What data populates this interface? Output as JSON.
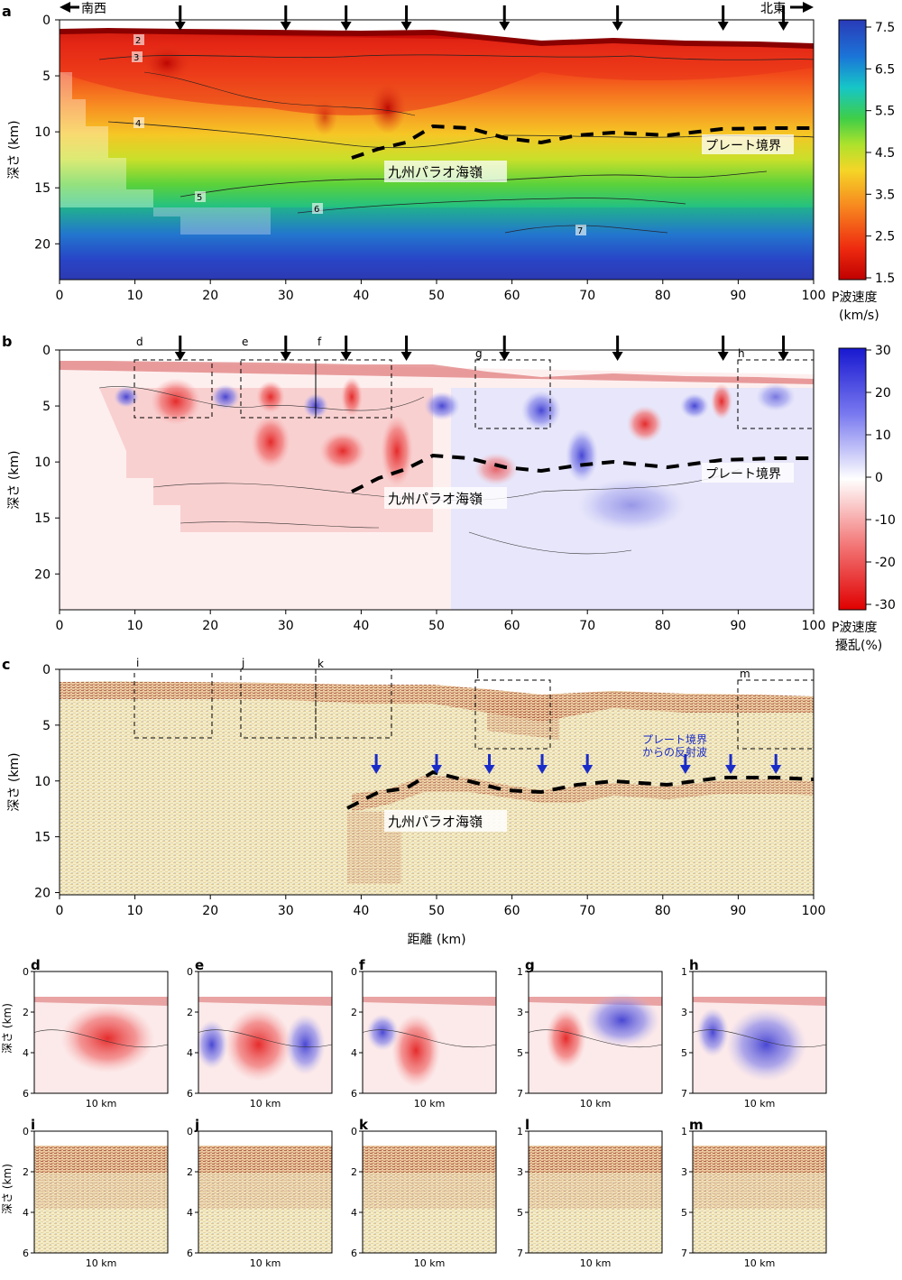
{
  "panel_a": {
    "letter": "a",
    "direction_left": "南西",
    "direction_right": "北東",
    "ylabel": "深さ (km)",
    "yticks": [
      0,
      5,
      10,
      15,
      20
    ],
    "xticks": [
      0,
      10,
      20,
      30,
      40,
      50,
      60,
      70,
      80,
      90,
      100
    ],
    "ylim": [
      0,
      23
    ],
    "xlim": [
      0,
      100
    ],
    "contour_labels": [
      "2",
      "3",
      "4",
      "5",
      "6",
      "7"
    ],
    "annotation_plate": "プレート境界",
    "annotation_ridge": "九州パラオ海嶺",
    "arrow_x": [
      16,
      30,
      38,
      46,
      59,
      74,
      88,
      96
    ],
    "colorbar": {
      "ticks": [
        "7.5",
        "6.5",
        "5.5",
        "4.5",
        "3.5",
        "2.5",
        "1.5"
      ],
      "label": "P波速度",
      "unit": "(km/s)"
    }
  },
  "panel_b": {
    "letter": "b",
    "ylabel": "深さ (km)",
    "yticks": [
      0,
      5,
      10,
      15,
      20
    ],
    "xticks": [
      0,
      10,
      20,
      30,
      40,
      50,
      60,
      70,
      80,
      90,
      100
    ],
    "box_labels": [
      "d",
      "e",
      "f",
      "g",
      "h"
    ],
    "annotation_plate": "プレート境界",
    "annotation_ridge": "九州パラオ海嶺",
    "arrow_x": [
      16,
      30,
      38,
      46,
      59,
      74,
      88,
      96
    ],
    "colorbar": {
      "ticks": [
        "30",
        "20",
        "10",
        "0",
        "-10",
        "-20",
        "-30"
      ],
      "label": "P波速度",
      "unit": "擾乱(%)"
    }
  },
  "panel_c": {
    "letter": "c",
    "ylabel": "深さ (km)",
    "xlabel": "距離 (km)",
    "yticks": [
      0,
      5,
      10,
      15,
      20
    ],
    "xticks": [
      0,
      10,
      20,
      30,
      40,
      50,
      60,
      70,
      80,
      90,
      100
    ],
    "box_labels": [
      "i",
      "j",
      "k",
      "l",
      "m"
    ],
    "annotation_reflection_1": "プレート境界",
    "annotation_reflection_2": "からの反射波",
    "annotation_ridge": "九州パラオ海嶺",
    "blue_arrow_x": [
      42,
      50,
      57,
      64,
      70,
      83,
      89,
      95
    ]
  },
  "insets_top": [
    {
      "letter": "d",
      "yticks": [
        "0",
        "2",
        "4",
        "6"
      ],
      "scale": "10 km"
    },
    {
      "letter": "e",
      "yticks": [
        "0",
        "2",
        "4",
        "6"
      ],
      "scale": "10 km"
    },
    {
      "letter": "f",
      "yticks": [
        "0",
        "2",
        "4",
        "6"
      ],
      "scale": "10 km"
    },
    {
      "letter": "g",
      "yticks": [
        "1",
        "3",
        "5",
        "7"
      ],
      "scale": "10 km"
    },
    {
      "letter": "h",
      "yticks": [
        "1",
        "3",
        "5",
        "7"
      ],
      "scale": "10 km"
    }
  ],
  "insets_bottom": [
    {
      "letter": "i",
      "yticks": [
        "0",
        "2",
        "4",
        "6"
      ],
      "scale": "10 km"
    },
    {
      "letter": "j",
      "yticks": [
        "0",
        "2",
        "4",
        "6"
      ],
      "scale": "10 km"
    },
    {
      "letter": "k",
      "yticks": [
        "0",
        "2",
        "4",
        "6"
      ],
      "scale": "10 km"
    },
    {
      "letter": "l",
      "yticks": [
        "1",
        "3",
        "5",
        "7"
      ],
      "scale": "10 km"
    },
    {
      "letter": "m",
      "yticks": [
        "1",
        "3",
        "5",
        "7"
      ],
      "scale": "10 km"
    }
  ],
  "insets_ylabel": "深さ (km)"
}
